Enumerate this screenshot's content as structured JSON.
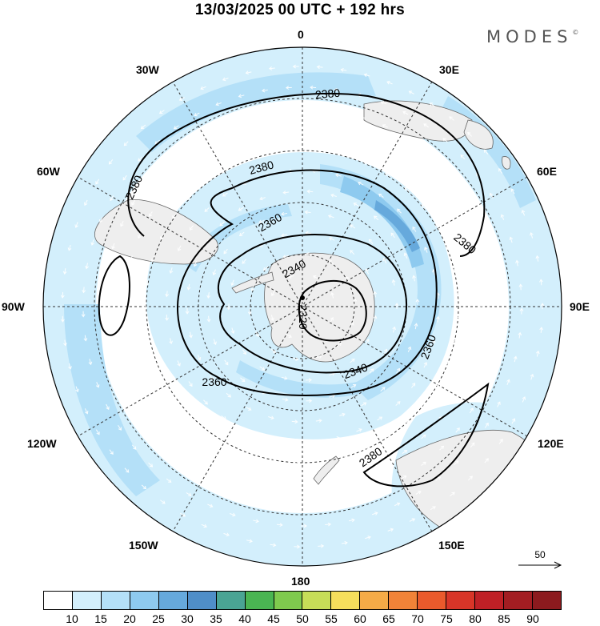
{
  "title": "13/03/2025  00 UTC  + 192 hrs",
  "brand": "MODES",
  "brand_mark": "©",
  "longitude_labels": {
    "n": "0",
    "ne30": "30E",
    "ne60": "60E",
    "e": "90E",
    "se120": "120E",
    "se150": "150E",
    "s": "180",
    "sw150": "150W",
    "sw120": "120W",
    "w": "90W",
    "nw60": "60W",
    "nw30": "30W"
  },
  "contours": [
    {
      "label": "2380"
    },
    {
      "label": "2380"
    },
    {
      "label": "2380"
    },
    {
      "label": "2380"
    },
    {
      "label": "2380"
    },
    {
      "label": "2360"
    },
    {
      "label": "2360"
    },
    {
      "label": "2360"
    },
    {
      "label": "2340"
    },
    {
      "label": "2340"
    },
    {
      "label": "2320"
    }
  ],
  "reference_vector": {
    "label": "50"
  },
  "colorbar": {
    "colors": [
      "#ffffff",
      "#d3effc",
      "#b4e0f8",
      "#8ecaef",
      "#66a9dc",
      "#4f8ec8",
      "#4aa494",
      "#4ab552",
      "#7fca4e",
      "#c7dd58",
      "#f6df5c",
      "#f5ab47",
      "#f18338",
      "#ea5a2c",
      "#d83528",
      "#bf2026",
      "#a31d22",
      "#8c1a1e"
    ],
    "ticks": [
      "10",
      "15",
      "20",
      "25",
      "30",
      "35",
      "40",
      "45",
      "50",
      "55",
      "60",
      "65",
      "70",
      "75",
      "80",
      "85",
      "90"
    ]
  },
  "colors": {
    "land": "#eeeeee",
    "contour": "#000000",
    "graticule": "#333333"
  }
}
